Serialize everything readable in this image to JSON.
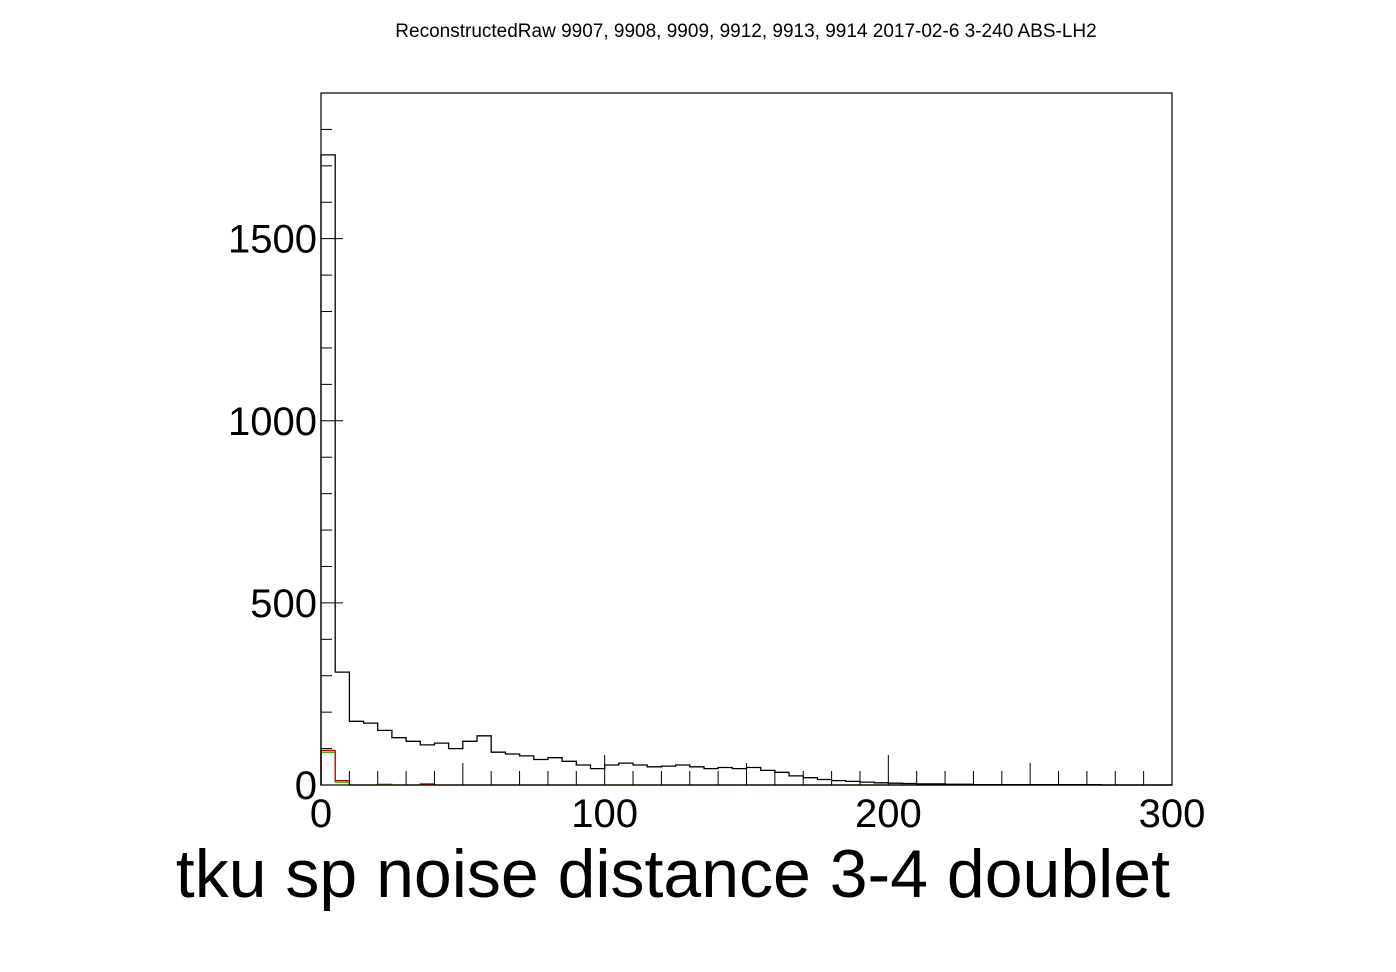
{
  "chart_data": {
    "type": "histogram",
    "title": "ReconstructedRaw 9907, 9908, 9909, 9912, 9913, 9914 2017-02-6 3-240 ABS-LH2",
    "xlabel": "tku sp noise distance 3-4 doublet",
    "ylabel": "",
    "xlim": [
      0,
      300
    ],
    "ylim": [
      0,
      1900
    ],
    "x_ticks": [
      0,
      100,
      200,
      300
    ],
    "x_tick_labels": [
      "0",
      "100",
      "200",
      "300"
    ],
    "y_ticks": [
      0,
      500,
      1000,
      1500
    ],
    "y_tick_labels": [
      "0",
      "500",
      "1000",
      "1500"
    ],
    "bin_width": 5,
    "grid": false,
    "legend": "none",
    "series": [
      {
        "color": "#000000",
        "values": [
          1730,
          310,
          175,
          170,
          150,
          130,
          120,
          110,
          115,
          100,
          120,
          135,
          90,
          85,
          80,
          70,
          75,
          65,
          55,
          45,
          55,
          60,
          55,
          50,
          52,
          55,
          50,
          45,
          48,
          45,
          48,
          40,
          35,
          25,
          20,
          15,
          12,
          10,
          8,
          6,
          5,
          4,
          3,
          3,
          2,
          2,
          1,
          1,
          1,
          1,
          1,
          1,
          1,
          1,
          1,
          0,
          0,
          0,
          0,
          0
        ]
      },
      {
        "color": "#cc0000",
        "values": [
          95,
          12,
          0,
          0,
          0,
          0,
          0,
          3,
          0,
          0,
          0,
          0,
          0,
          0,
          0,
          0,
          0,
          0,
          0,
          0,
          0,
          0,
          0,
          0,
          0,
          0,
          0,
          0,
          0,
          0,
          0,
          0,
          0,
          0,
          0,
          0,
          0,
          0,
          0,
          0,
          0,
          0,
          0,
          0,
          0,
          0,
          0,
          0,
          0,
          0,
          0,
          0,
          0,
          0,
          0,
          0,
          0,
          0,
          0,
          0
        ]
      },
      {
        "color": "#00bb00",
        "values": [
          90,
          8,
          0,
          0,
          2,
          0,
          0,
          0,
          0,
          0,
          0,
          0,
          0,
          0,
          0,
          0,
          0,
          0,
          0,
          0,
          0,
          0,
          0,
          0,
          0,
          0,
          0,
          0,
          0,
          0,
          0,
          0,
          0,
          0,
          0,
          0,
          0,
          0,
          0,
          0,
          0,
          0,
          0,
          0,
          0,
          0,
          0,
          0,
          0,
          0,
          0,
          0,
          0,
          0,
          0,
          0,
          0,
          0,
          0,
          0
        ]
      }
    ]
  }
}
